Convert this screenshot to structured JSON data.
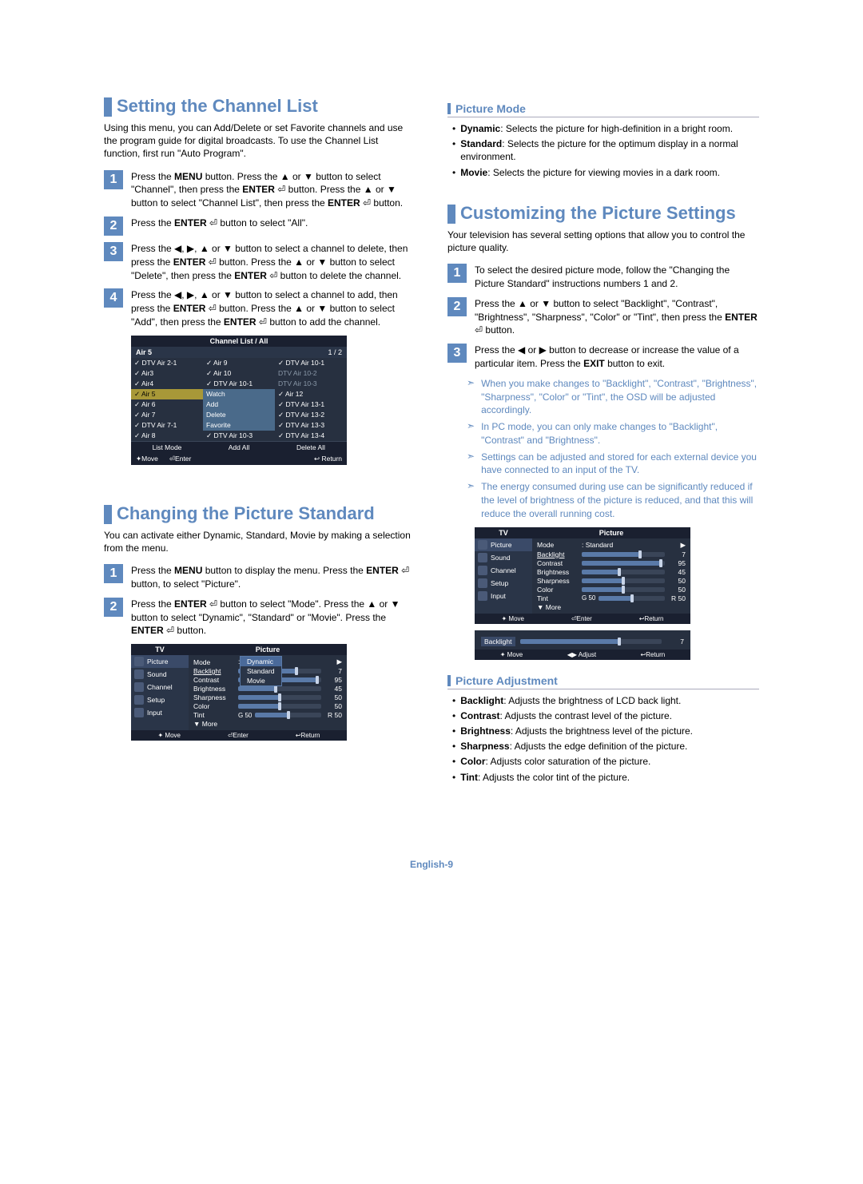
{
  "page_number": "English-9",
  "left": {
    "channel_list": {
      "title": "Setting the Channel List",
      "intro": "Using this menu, you can Add/Delete or set Favorite channels and use the program guide for digital broadcasts. To use the Channel List function, first run \"Auto Program\".",
      "steps": [
        "Press the MENU button. Press the ▲ or ▼ button to select \"Channel\", then press the ENTER ⏎ button. Press the ▲ or ▼ button to select \"Channel List\", then press the ENTER ⏎ button.",
        "Press the ENTER ⏎ button to select \"All\".",
        "Press the ◀, ▶, ▲ or ▼ button to select a channel to delete, then press the ENTER ⏎ button. Press the ▲ or ▼ button to select \"Delete\", then press the ENTER ⏎ button to delete the channel.",
        "Press the ◀, ▶, ▲ or ▼ button to select a channel to add, then press the ENTER ⏎ button. Press the ▲ or ▼ button to select \"Add\", then press the ENTER ⏎ button to add the channel."
      ]
    },
    "chan_shot": {
      "title": "Channel List / All",
      "hdr_left": "Air 5",
      "hdr_right": "1 / 2",
      "cells": [
        [
          "✓ DTV Air 2-1",
          "✓ Air 9",
          "✓ DTV Air 10-1"
        ],
        [
          "✓ Air3",
          "✓ Air 10",
          "DTV Air 10-2"
        ],
        [
          "✓ Air4",
          "✓ DTV Air 10-1",
          "DTV Air 10-3"
        ],
        [
          "✓ Air 5",
          "Watch",
          "✓ Air 12"
        ],
        [
          "✓ Air 6",
          "Add",
          "✓ DTV Air 13-1"
        ],
        [
          "✓ Air 7",
          "Delete",
          "✓ DTV Air 13-2"
        ],
        [
          "✓ DTV Air 7-1",
          "Favorite",
          "✓ DTV Air 13-3"
        ],
        [
          "✓ Air 8",
          "✓ DTV Air 10-3",
          "✓ DTV Air 13-4"
        ]
      ],
      "btns": [
        "List Mode",
        "Add All",
        "Delete All"
      ],
      "foot": [
        "✦Move",
        "⏎Enter",
        "↩ Return"
      ]
    },
    "picture_std": {
      "title": "Changing the Picture Standard",
      "intro": "You can activate either Dynamic, Standard, Movie by making a selection from the menu.",
      "steps": [
        "Press the MENU button to display the menu. Press the ENTER ⏎ button, to select \"Picture\".",
        "Press the ENTER ⏎ button to select \"Mode\". Press the ▲ or ▼ button to select \"Dynamic\", \"Standard\" or \"Movie\". Press the ENTER ⏎ button."
      ]
    },
    "tv_shot1": {
      "hdr_l": "TV",
      "hdr_r": "Picture",
      "side": [
        "Picture",
        "Sound",
        "Channel",
        "Setup",
        "Input"
      ],
      "rows": [
        {
          "label": "Mode",
          "type": "mode",
          "value": "Standard",
          "popup": [
            "Dynamic",
            "Standard",
            "Movie"
          ]
        },
        {
          "label": "Backlight",
          "type": "slider",
          "val": "7",
          "pct": 70
        },
        {
          "label": "Contrast",
          "type": "slider",
          "val": "95",
          "pct": 95
        },
        {
          "label": "Brightness",
          "type": "slider",
          "val": "45",
          "pct": 45
        },
        {
          "label": "Sharpness",
          "type": "slider",
          "val": "50",
          "pct": 50
        },
        {
          "label": "Color",
          "type": "slider",
          "val": "50",
          "pct": 50
        },
        {
          "label": "Tint",
          "type": "tint",
          "left": "G 50",
          "right": "R 50",
          "pct": 50
        },
        {
          "label": "▼ More",
          "type": "more"
        }
      ],
      "foot": [
        "✦ Move",
        "⏎Enter",
        "↩Return"
      ]
    }
  },
  "right": {
    "picture_mode": {
      "title": "Picture Mode",
      "items": [
        {
          "name": "Dynamic",
          "desc": ": Selects the picture for high-definition in a bright room."
        },
        {
          "name": "Standard",
          "desc": ": Selects the picture for the optimum display in a normal environment."
        },
        {
          "name": "Movie",
          "desc": ": Selects the picture for viewing movies in a dark room."
        }
      ]
    },
    "customize": {
      "title": "Customizing the Picture Settings",
      "intro": "Your television has several setting options that allow you to control the picture quality.",
      "steps": [
        "To select the desired picture mode, follow the \"Changing the Picture Standard\" instructions numbers 1 and 2.",
        "Press the ▲ or ▼ button to select \"Backlight\", \"Contrast\", \"Brightness\", \"Sharpness\", \"Color\" or \"Tint\", then press the ENTER ⏎ button.",
        "Press the ◀ or ▶ button to decrease or increase the value of a particular item. Press the EXIT button to exit."
      ],
      "notes": [
        "When you make changes to \"Backlight\", \"Contrast\", \"Brightness\", \"Sharpness\", \"Color\" or \"Tint\", the OSD will be adjusted accordingly.",
        "In PC mode, you can only make changes to \"Backlight\", \"Contrast\" and \"Brightness\".",
        "Settings can be adjusted and stored for each external device you have connected to an input of the TV.",
        "The energy consumed during use can be significantly reduced if the level of brightness of the picture is reduced, and that this will reduce the overall running cost."
      ]
    },
    "tv_shot2": {
      "hdr_l": "TV",
      "hdr_r": "Picture",
      "side": [
        "Picture",
        "Sound",
        "Channel",
        "Setup",
        "Input"
      ],
      "rows": [
        {
          "label": "Mode",
          "type": "text",
          "value": ": Standard"
        },
        {
          "label": "Backlight",
          "type": "slider",
          "val": "7",
          "pct": 70
        },
        {
          "label": "Contrast",
          "type": "slider",
          "val": "95",
          "pct": 95
        },
        {
          "label": "Brightness",
          "type": "slider",
          "val": "45",
          "pct": 45
        },
        {
          "label": "Sharpness",
          "type": "slider",
          "val": "50",
          "pct": 50
        },
        {
          "label": "Color",
          "type": "slider",
          "val": "50",
          "pct": 50
        },
        {
          "label": "Tint",
          "type": "tint",
          "left": "G 50",
          "right": "R 50",
          "pct": 50
        },
        {
          "label": "▼ More",
          "type": "more"
        }
      ],
      "foot": [
        "✦ Move",
        "⏎Enter",
        "↩Return"
      ]
    },
    "backlight_shot": {
      "label": "Backlight",
      "val": "7",
      "pct": 70,
      "foot": [
        "✦ Move",
        "◀▶ Adjust",
        "↩Return"
      ]
    },
    "picture_adj": {
      "title": "Picture Adjustment",
      "items": [
        {
          "name": "Backlight",
          "desc": ": Adjusts the brightness of LCD back light."
        },
        {
          "name": "Contrast",
          "desc": ": Adjusts the contrast level of the picture."
        },
        {
          "name": "Brightness",
          "desc": ": Adjusts the brightness level of the picture."
        },
        {
          "name": "Sharpness",
          "desc": ": Adjusts the edge definition of the picture."
        },
        {
          "name": "Color",
          "desc": ": Adjusts color saturation of the picture."
        },
        {
          "name": "Tint",
          "desc": ": Adjusts the color tint of the picture."
        }
      ]
    }
  }
}
